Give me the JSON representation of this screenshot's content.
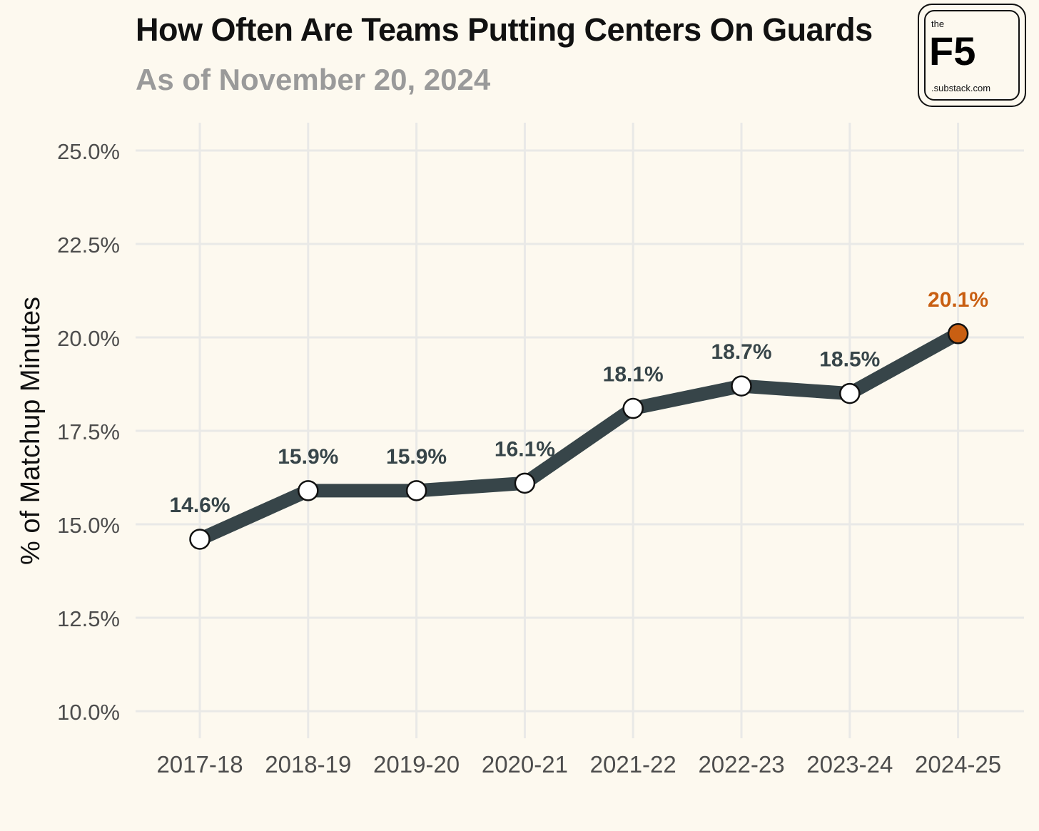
{
  "header": {
    "title": "How Often Are Teams Putting Centers On Guards",
    "subtitle": "As of November 20, 2024"
  },
  "logo": {
    "top_text": "the",
    "main_text": "F5",
    "bottom_text": ".substack.com"
  },
  "colors": {
    "background": "#fdf9ef",
    "line": "#374549",
    "label": "#374549",
    "highlight": "#c95f12",
    "grid": "#e9e9e7",
    "tick_text": "#4d4d4d"
  },
  "chart_data": {
    "type": "line",
    "title": "How Often Are Teams Putting Centers On Guards",
    "subtitle": "As of November 20, 2024",
    "xlabel": "",
    "ylabel": "% of Matchup Minutes",
    "categories": [
      "2017-18",
      "2018-19",
      "2019-20",
      "2020-21",
      "2021-22",
      "2022-23",
      "2023-24",
      "2024-25"
    ],
    "values": [
      14.6,
      15.9,
      15.9,
      16.1,
      18.1,
      18.7,
      18.5,
      20.1
    ],
    "data_labels": [
      "14.6%",
      "15.9%",
      "15.9%",
      "16.1%",
      "18.1%",
      "18.7%",
      "18.5%",
      "20.1%"
    ],
    "highlight_index": 7,
    "ylim": [
      10,
      25
    ],
    "yticks": [
      10.0,
      12.5,
      15.0,
      17.5,
      20.0,
      22.5,
      25.0
    ],
    "ytick_labels": [
      "10.0%",
      "12.5%",
      "15.0%",
      "17.5%",
      "20.0%",
      "22.5%",
      "25.0%"
    ],
    "grid": true,
    "legend": "none"
  }
}
